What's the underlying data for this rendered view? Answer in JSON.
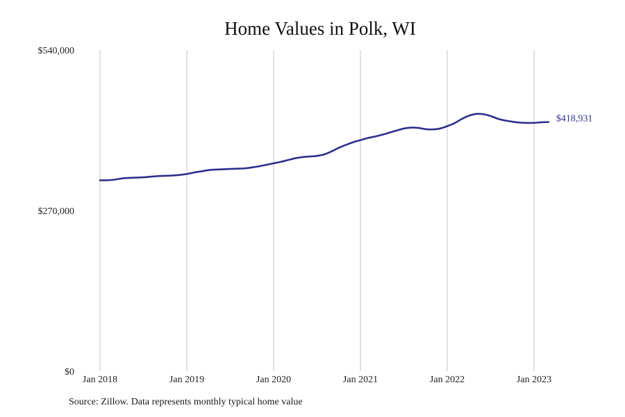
{
  "chart_data": {
    "type": "line",
    "title": "Home Values in Polk, WI",
    "xlabel": "",
    "ylabel": "",
    "x_tick_labels": [
      "Jan 2018",
      "Jan 2019",
      "Jan 2020",
      "Jan 2021",
      "Jan 2022",
      "Jan 2023"
    ],
    "y_tick_labels": [
      "$0",
      "$270,000",
      "$540,000"
    ],
    "y_ticks": [
      0,
      270000,
      540000
    ],
    "ylim": [
      0,
      540000
    ],
    "xlim": [
      "2018-01",
      "2023-03"
    ],
    "grid": {
      "vertical": true,
      "horizontal": false
    },
    "line_color": "#2e2e8c",
    "end_label": "$418,931",
    "series": [
      {
        "x": [
          "2018-01",
          "2018-02",
          "2018-03",
          "2018-04",
          "2018-05",
          "2018-06",
          "2018-07",
          "2018-08",
          "2018-09",
          "2018-10",
          "2018-11",
          "2018-12",
          "2019-01",
          "2019-02",
          "2019-03",
          "2019-04",
          "2019-05",
          "2019-06",
          "2019-07",
          "2019-08",
          "2019-09",
          "2019-10",
          "2019-11",
          "2019-12",
          "2020-01",
          "2020-02",
          "2020-03",
          "2020-04",
          "2020-05",
          "2020-06",
          "2020-07",
          "2020-08",
          "2020-09",
          "2020-10",
          "2020-11",
          "2020-12",
          "2021-01",
          "2021-02",
          "2021-03",
          "2021-04",
          "2021-05",
          "2021-06",
          "2021-07",
          "2021-08",
          "2021-09",
          "2021-10",
          "2021-11",
          "2021-12",
          "2022-01",
          "2022-02",
          "2022-03",
          "2022-04",
          "2022-05",
          "2022-06",
          "2022-07",
          "2022-08",
          "2022-09",
          "2022-10",
          "2022-11",
          "2022-12",
          "2023-01",
          "2023-02",
          "2023-03"
        ],
        "y": [
          321000,
          321000,
          322000,
          324000,
          325000,
          325500,
          326000,
          327000,
          328000,
          328500,
          329000,
          330000,
          331500,
          334000,
          336000,
          338000,
          339000,
          339500,
          340000,
          340500,
          341000,
          342500,
          344500,
          347000,
          349500,
          352000,
          355000,
          358000,
          360000,
          361000,
          362000,
          364500,
          369500,
          375500,
          380500,
          385000,
          388500,
          392000,
          394500,
          397500,
          401000,
          404500,
          408000,
          409500,
          409000,
          407000,
          406500,
          408000,
          412000,
          417000,
          424000,
          429500,
          432500,
          432000,
          429000,
          424500,
          421500,
          419500,
          418000,
          417500,
          417500,
          418500,
          418931
        ]
      }
    ]
  },
  "source_note": "Source: Zillow. Data represents monthly typical home value"
}
